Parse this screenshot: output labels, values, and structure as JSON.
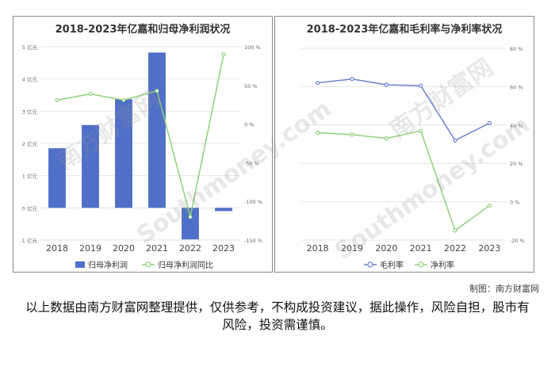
{
  "credit": "制图：南方财富网",
  "disclaimer": "以上数据由南方财富网整理提供，仅供参考，不构成投资建议，据此操作，风险自担，股市有风险，投资需谨慎。",
  "watermark": {
    "logo_text": "南方财富网",
    "url_text": "Southmoney.com"
  },
  "chart_data": [
    {
      "type": "bar",
      "title": "2018-2023年亿嘉和归母净利润状况",
      "categories": [
        "2018",
        "2019",
        "2020",
        "2021",
        "2022",
        "2023"
      ],
      "y_left": {
        "ticks": [
          "-1 亿元",
          "0 亿元",
          "1 亿元",
          "2 亿元",
          "3 亿元",
          "4 亿元",
          "5 亿元"
        ],
        "range": [
          -1,
          5
        ]
      },
      "y_right": {
        "ticks": [
          "-150 %",
          "-100 %",
          "-50 %",
          "0 %",
          "50 %",
          "100 %"
        ],
        "range": [
          -150,
          100
        ]
      },
      "series": [
        {
          "name": "归母净利润",
          "kind": "bar",
          "axis": "left",
          "color": "#4f6fc8",
          "values": [
            1.85,
            2.57,
            3.37,
            4.82,
            -0.98,
            -0.1
          ]
        },
        {
          "name": "归母净利润同比",
          "kind": "line",
          "axis": "right",
          "color": "#8fd17a",
          "values": [
            31,
            39,
            31,
            43,
            -120,
            90
          ]
        }
      ],
      "legend": "bottom"
    },
    {
      "type": "line",
      "title": "2018-2023年亿嘉和毛利率与净利率状况",
      "categories": [
        "2018",
        "2019",
        "2020",
        "2021",
        "2022",
        "2023"
      ],
      "y_right": {
        "ticks": [
          "-20 %",
          "0 %",
          "20 %",
          "40 %",
          "60 %",
          "80 %"
        ],
        "range": [
          -20,
          80
        ]
      },
      "series": [
        {
          "name": "毛利率",
          "color": "#6a7fcf",
          "values": [
            62,
            64,
            61,
            60.5,
            32,
            41
          ]
        },
        {
          "name": "净利率",
          "color": "#8fd17a",
          "values": [
            36,
            35,
            33,
            37,
            -15,
            -2
          ]
        }
      ],
      "legend": "bottom"
    }
  ]
}
